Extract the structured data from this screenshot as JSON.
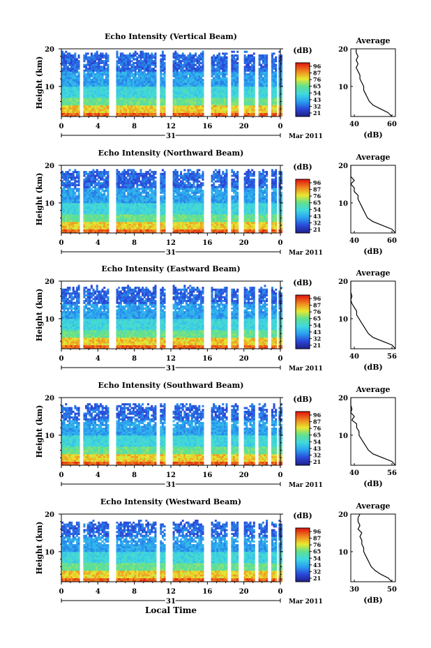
{
  "figure": {
    "x_axis_title": "Local Time",
    "day_label": "31",
    "month_label": "Mar 2011"
  },
  "chart_data": [
    {
      "type": "heatmap",
      "title": "Echo Intensity (Vertical Beam)",
      "ylabel": "Height (km)",
      "xlim": [
        0,
        24
      ],
      "ylim": [
        2,
        20
      ],
      "x_ticks": [
        "0",
        "4",
        "8",
        "12",
        "16",
        "20",
        "0"
      ],
      "y_ticks": [
        "10",
        "20"
      ],
      "colorbar": {
        "label": "(dB)",
        "ticks": [
          "96",
          "87",
          "76",
          "65",
          "54",
          "43",
          "32",
          "21"
        ]
      },
      "profile": {
        "title": "Average",
        "xlabel": "(dB)",
        "x_ticks": [
          "40",
          "60"
        ],
        "y_ticks": [
          "10",
          "20"
        ],
        "heights": [
          2,
          3,
          4,
          5,
          6,
          7,
          8,
          9,
          10,
          11,
          12,
          13,
          14,
          15,
          16,
          17,
          18,
          19,
          20
        ],
        "values": [
          60,
          58,
          54,
          50,
          48,
          47,
          46,
          45,
          45,
          44,
          43,
          43,
          42,
          41,
          42,
          41,
          42,
          41,
          41
        ]
      }
    },
    {
      "type": "heatmap",
      "title": "Echo Intensity (Northward Beam)",
      "ylabel": "Height (km)",
      "xlim": [
        0,
        24
      ],
      "ylim": [
        2,
        20
      ],
      "x_ticks": [
        "0",
        "4",
        "8",
        "12",
        "16",
        "20",
        "0"
      ],
      "y_ticks": [
        "10",
        "20"
      ],
      "colorbar": {
        "label": "(dB)",
        "ticks": [
          "96",
          "87",
          "76",
          "65",
          "54",
          "43",
          "32",
          "21"
        ]
      },
      "profile": {
        "title": "Average",
        "xlabel": "(dB)",
        "x_ticks": [
          "40",
          "60"
        ],
        "y_ticks": [
          "10",
          "20"
        ],
        "heights": [
          2,
          3,
          4,
          5,
          6,
          7,
          8,
          9,
          10,
          11,
          12,
          13,
          14,
          15,
          16,
          17,
          18,
          19,
          20
        ],
        "values": [
          62,
          60,
          55,
          50,
          47,
          46,
          45,
          44,
          43,
          42,
          42,
          40,
          40,
          38,
          40,
          38,
          37,
          38,
          37
        ]
      }
    },
    {
      "type": "heatmap",
      "title": "Echo Intensity (Eastward Beam)",
      "ylabel": "Height (km)",
      "xlim": [
        0,
        24
      ],
      "ylim": [
        2,
        20
      ],
      "x_ticks": [
        "0",
        "4",
        "8",
        "12",
        "16",
        "20",
        "0"
      ],
      "y_ticks": [
        "10",
        "20"
      ],
      "colorbar": {
        "label": "(dB)",
        "ticks": [
          "96",
          "87",
          "76",
          "65",
          "54",
          "43",
          "32",
          "21"
        ]
      },
      "profile": {
        "title": "Average",
        "xlabel": "(dB)",
        "x_ticks": [
          "40",
          "56"
        ],
        "y_ticks": [
          "10",
          "20"
        ],
        "heights": [
          2,
          3,
          4,
          5,
          6,
          7,
          8,
          9,
          10,
          11,
          12,
          13,
          14,
          15,
          16,
          17,
          18,
          19,
          20
        ],
        "values": [
          58,
          56,
          52,
          48,
          46,
          45,
          44,
          43,
          42,
          41,
          41,
          40,
          39,
          38,
          39,
          38,
          37,
          36,
          37
        ]
      }
    },
    {
      "type": "heatmap",
      "title": "Echo Intensity (Southward Beam)",
      "ylabel": "Height (km)",
      "xlim": [
        0,
        24
      ],
      "ylim": [
        2,
        20
      ],
      "x_ticks": [
        "0",
        "4",
        "8",
        "12",
        "16",
        "20",
        "0"
      ],
      "y_ticks": [
        "10",
        "20"
      ],
      "colorbar": {
        "label": "(dB)",
        "ticks": [
          "96",
          "87",
          "76",
          "65",
          "54",
          "43",
          "32",
          "21"
        ]
      },
      "profile": {
        "title": "Average",
        "xlabel": "(dB)",
        "x_ticks": [
          "40",
          "56"
        ],
        "y_ticks": [
          "10",
          "20"
        ],
        "heights": [
          2,
          3,
          4,
          5,
          6,
          7,
          8,
          9,
          10,
          11,
          12,
          13,
          14,
          15,
          16,
          17,
          18,
          19,
          20
        ],
        "values": [
          58,
          56,
          52,
          48,
          46,
          45,
          44,
          43,
          42,
          42,
          41,
          41,
          39,
          40,
          38,
          39,
          37,
          37,
          37
        ]
      }
    },
    {
      "type": "heatmap",
      "title": "Echo Intensity (Westward Beam)",
      "ylabel": "Height (km)",
      "xlim": [
        0,
        24
      ],
      "ylim": [
        2,
        20
      ],
      "x_ticks": [
        "0",
        "4",
        "8",
        "12",
        "16",
        "20",
        "0"
      ],
      "y_ticks": [
        "10",
        "20"
      ],
      "colorbar": {
        "label": "(dB)",
        "ticks": [
          "96",
          "87",
          "76",
          "65",
          "54",
          "43",
          "32",
          "21"
        ]
      },
      "profile": {
        "title": "Average",
        "xlabel": "(dB)",
        "x_ticks": [
          "30",
          "50"
        ],
        "y_ticks": [
          "10",
          "20"
        ],
        "heights": [
          2,
          3,
          4,
          5,
          6,
          7,
          8,
          9,
          10,
          11,
          12,
          13,
          14,
          15,
          16,
          17,
          18,
          19,
          20
        ],
        "values": [
          50,
          48,
          44,
          41,
          39,
          38,
          37,
          36,
          35,
          35,
          34,
          34,
          33,
          34,
          32,
          33,
          32,
          32,
          33
        ]
      }
    }
  ]
}
